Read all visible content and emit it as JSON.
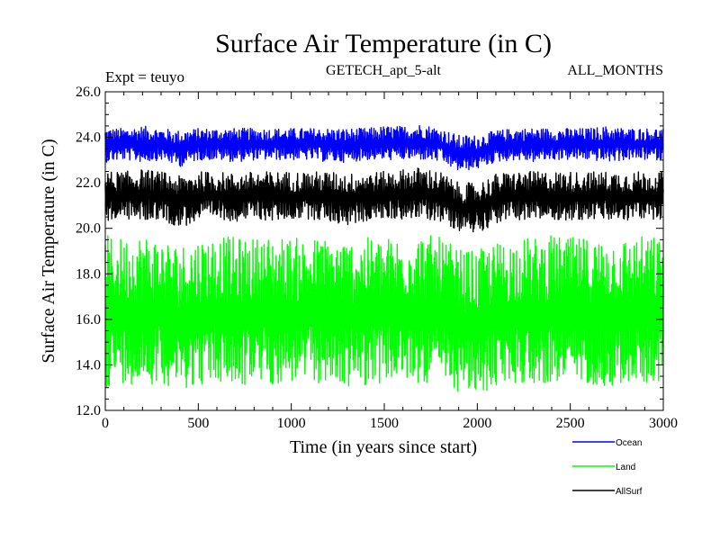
{
  "chart_data": {
    "type": "line",
    "title": "Surface Air Temperature (in C)",
    "subtitle": "GETECH_apt_5-alt",
    "left_label": "Expt = teuyo",
    "right_label": "ALL_MONTHS",
    "xlabel": "Time (in years since start)",
    "ylabel": "Surface Air Temperature (in C)",
    "xlim": [
      0,
      3000
    ],
    "ylim": [
      12.0,
      26.0
    ],
    "xticks": [
      "0",
      "500",
      "1000",
      "1500",
      "2000",
      "2500",
      "3000"
    ],
    "yticks": [
      "12.0",
      "14.0",
      "16.0",
      "18.0",
      "20.0",
      "22.0",
      "24.0",
      "26.0"
    ],
    "grid": false,
    "legend_position": "bottom-right",
    "x_sample": [
      0,
      100,
      200,
      300,
      400,
      500,
      600,
      700,
      800,
      900,
      1000,
      1100,
      1200,
      1300,
      1400,
      1500,
      1600,
      1700,
      1800,
      1900,
      2000,
      2100,
      2200,
      2300,
      2400,
      2500,
      2600,
      2700,
      2800,
      2900,
      3000
    ],
    "series": [
      {
        "name": "Ocean",
        "color": "#0000ff",
        "mean": [
          23.7,
          23.7,
          23.7,
          23.7,
          23.5,
          23.7,
          23.7,
          23.7,
          23.7,
          23.7,
          23.7,
          23.7,
          23.7,
          23.6,
          23.7,
          23.7,
          23.7,
          23.8,
          23.7,
          23.2,
          23.3,
          23.6,
          23.7,
          23.7,
          23.7,
          23.7,
          23.7,
          23.7,
          23.7,
          23.7,
          23.7
        ],
        "upper": [
          24.4,
          24.4,
          24.5,
          24.4,
          24.3,
          24.4,
          24.4,
          24.4,
          24.4,
          24.4,
          24.4,
          24.4,
          24.4,
          24.4,
          24.4,
          24.5,
          24.5,
          24.6,
          24.4,
          24.1,
          24.1,
          24.3,
          24.4,
          24.4,
          24.4,
          24.4,
          24.4,
          24.5,
          24.4,
          24.4,
          24.4
        ],
        "lower": [
          22.9,
          23.0,
          22.9,
          23.0,
          22.7,
          23.0,
          23.0,
          22.9,
          23.0,
          23.0,
          23.0,
          23.0,
          22.9,
          22.9,
          23.0,
          23.0,
          23.0,
          23.0,
          22.9,
          22.5,
          22.6,
          22.9,
          23.0,
          22.9,
          23.0,
          23.0,
          23.0,
          22.9,
          23.0,
          23.0,
          23.0
        ]
      },
      {
        "name": "Land",
        "color": "#00ff00",
        "mean": [
          16.2,
          16.2,
          16.3,
          16.2,
          15.9,
          16.2,
          16.2,
          16.2,
          16.2,
          16.2,
          16.2,
          16.2,
          16.2,
          16.1,
          16.2,
          16.2,
          16.3,
          16.3,
          16.2,
          15.8,
          15.7,
          16.1,
          16.2,
          16.2,
          16.2,
          16.2,
          16.2,
          16.2,
          16.2,
          16.2,
          16.2
        ],
        "upper": [
          19.7,
          19.6,
          19.8,
          19.6,
          19.3,
          19.6,
          19.7,
          19.6,
          19.6,
          19.7,
          19.6,
          19.6,
          19.6,
          19.5,
          19.6,
          19.6,
          19.7,
          19.8,
          19.6,
          19.1,
          19.0,
          19.4,
          19.6,
          19.6,
          19.7,
          19.6,
          19.6,
          19.6,
          19.6,
          19.7,
          19.6
        ],
        "lower": [
          13.0,
          13.2,
          13.1,
          13.2,
          12.9,
          13.1,
          13.2,
          12.9,
          13.2,
          13.1,
          13.2,
          13.2,
          13.1,
          13.0,
          13.1,
          13.2,
          13.2,
          13.2,
          13.1,
          12.8,
          12.5,
          13.0,
          13.2,
          13.1,
          13.2,
          13.1,
          13.2,
          13.0,
          13.1,
          13.2,
          13.2
        ]
      },
      {
        "name": "AllSurf",
        "color": "#000000",
        "mean": [
          21.4,
          21.4,
          21.5,
          21.4,
          21.2,
          21.4,
          21.4,
          21.4,
          21.4,
          21.4,
          21.4,
          21.4,
          21.4,
          21.3,
          21.4,
          21.4,
          21.5,
          21.5,
          21.4,
          20.9,
          20.9,
          21.3,
          21.4,
          21.4,
          21.4,
          21.4,
          21.4,
          21.4,
          21.4,
          21.4,
          21.4
        ],
        "upper": [
          22.5,
          22.5,
          22.6,
          22.5,
          22.3,
          22.5,
          22.5,
          22.4,
          22.5,
          22.5,
          22.5,
          22.5,
          22.5,
          22.4,
          22.5,
          22.5,
          22.6,
          22.7,
          22.5,
          22.0,
          22.0,
          22.4,
          22.5,
          22.5,
          22.5,
          22.5,
          22.5,
          22.5,
          22.5,
          22.5,
          22.5
        ],
        "lower": [
          20.3,
          20.4,
          20.3,
          20.4,
          20.0,
          20.3,
          20.4,
          20.3,
          20.4,
          20.3,
          20.4,
          20.4,
          20.3,
          20.1,
          20.3,
          20.4,
          20.4,
          20.4,
          20.3,
          19.9,
          19.8,
          20.2,
          20.4,
          20.3,
          20.4,
          20.3,
          20.4,
          20.3,
          20.3,
          20.4,
          20.4
        ]
      }
    ]
  }
}
